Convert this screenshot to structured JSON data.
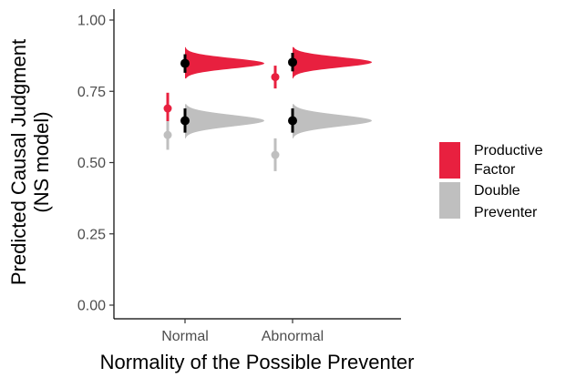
{
  "chart_data": {
    "type": "scatter",
    "subtype": "raincloud-pointrange",
    "xlabel": "Normality of the Possible Preventer",
    "ylabel_line1": "Predicted Causal Judgment",
    "ylabel_line2": "(NS model)",
    "categories": [
      "Normal",
      "Abnormal"
    ],
    "ylim": [
      -0.04,
      1.04
    ],
    "yticks": [
      0.0,
      0.25,
      0.5,
      0.75,
      1.0
    ],
    "ytick_labels": [
      "0.00",
      "0.25",
      "0.50",
      "0.75",
      "1.00"
    ],
    "grid": false,
    "legend_position": "right",
    "series": [
      {
        "name_line1": "Productive",
        "name_line2": "Factor",
        "color": "#e8203f",
        "observed": [
          {
            "category": "Normal",
            "mean": 0.69,
            "lower": 0.645,
            "upper": 0.745
          },
          {
            "category": "Abnormal",
            "mean": 0.8,
            "lower": 0.76,
            "upper": 0.84
          }
        ],
        "predicted": [
          {
            "category": "Normal",
            "mean": 0.848,
            "lower": 0.815,
            "upper": 0.88,
            "dist_mode": 0.848,
            "dist_sd": 0.018,
            "dist_min": 0.795,
            "dist_max": 0.905
          },
          {
            "category": "Abnormal",
            "mean": 0.852,
            "lower": 0.82,
            "upper": 0.885,
            "dist_mode": 0.852,
            "dist_sd": 0.018,
            "dist_min": 0.795,
            "dist_max": 0.905
          }
        ]
      },
      {
        "name_line1": "Double",
        "name_line2": "Preventer",
        "color": "#bfbfbf",
        "observed": [
          {
            "category": "Normal",
            "mean": 0.597,
            "lower": 0.545,
            "upper": 0.645
          },
          {
            "category": "Abnormal",
            "mean": 0.527,
            "lower": 0.47,
            "upper": 0.585
          }
        ],
        "predicted": [
          {
            "category": "Normal",
            "mean": 0.647,
            "lower": 0.605,
            "upper": 0.69,
            "dist_mode": 0.647,
            "dist_sd": 0.02,
            "dist_min": 0.585,
            "dist_max": 0.705
          },
          {
            "category": "Abnormal",
            "mean": 0.647,
            "lower": 0.605,
            "upper": 0.69,
            "dist_mode": 0.647,
            "dist_sd": 0.02,
            "dist_min": 0.585,
            "dist_max": 0.705
          }
        ]
      }
    ],
    "prediction_point_color": "#000000"
  }
}
